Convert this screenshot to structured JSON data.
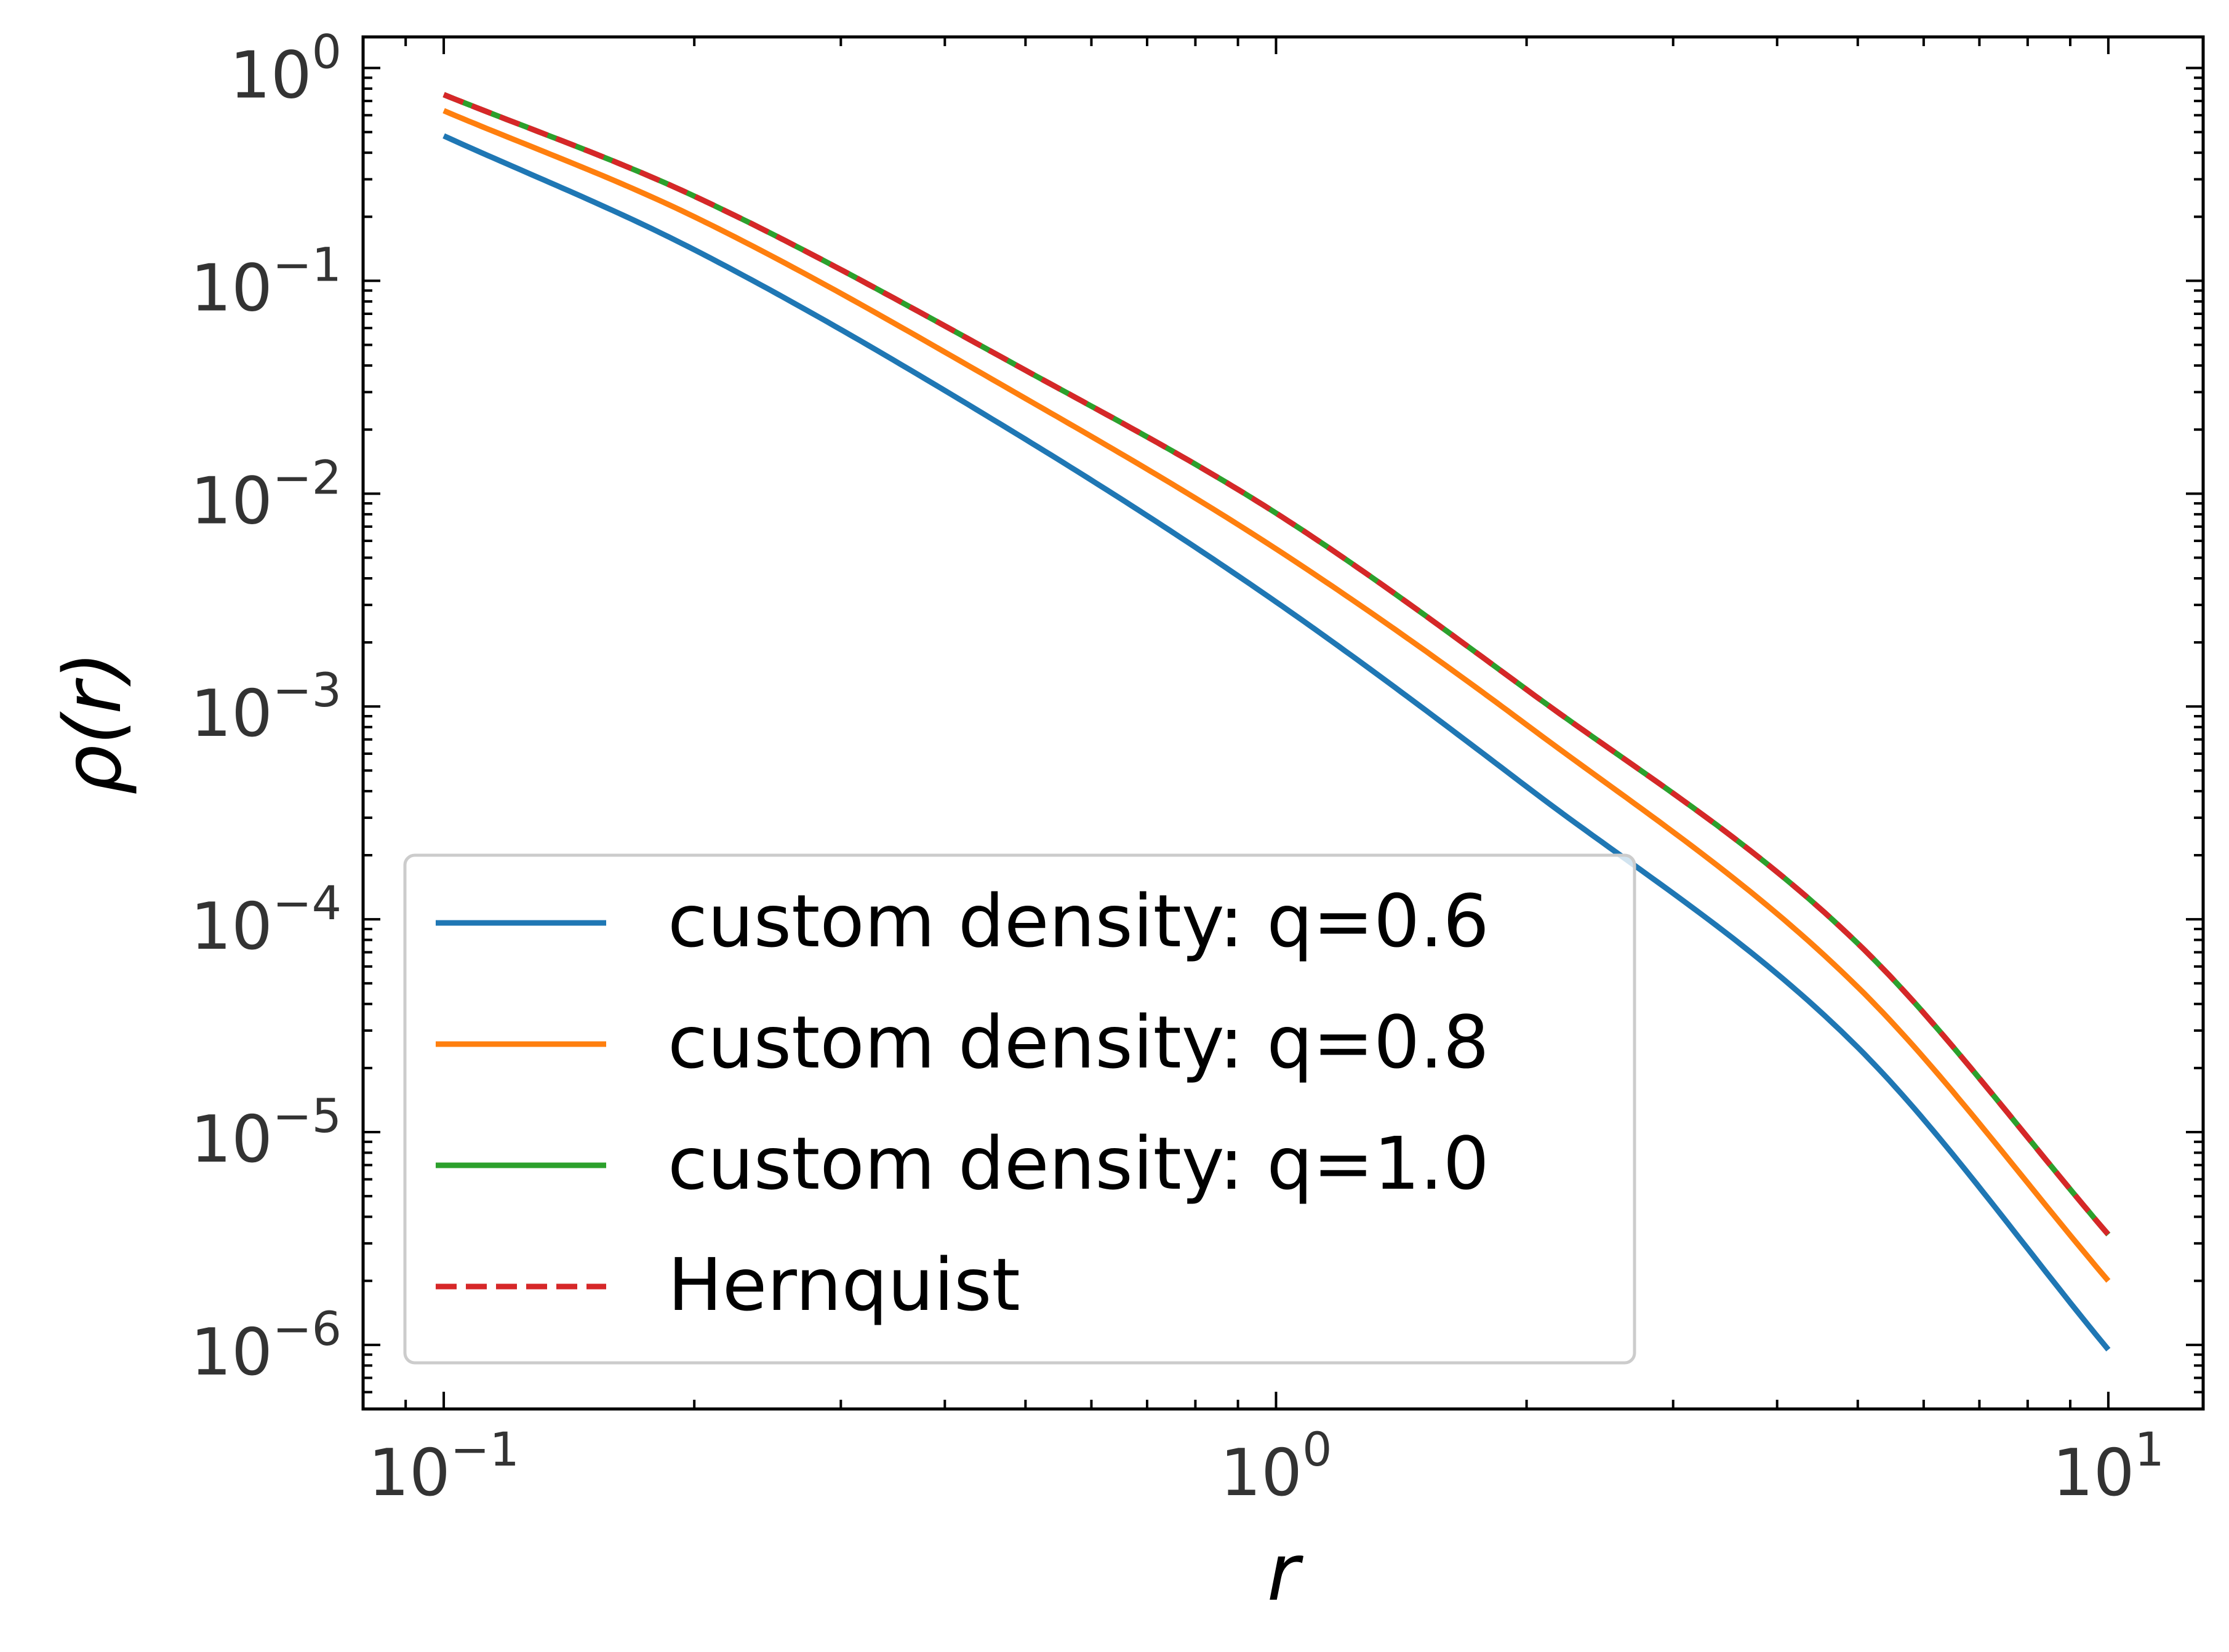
{
  "chart_data": {
    "type": "line",
    "title": "",
    "xlabel": "r",
    "ylabel": "ρ(r)",
    "xscale": "log",
    "yscale": "log",
    "xlim": [
      0.08,
      13
    ],
    "ylim": [
      5e-07,
      1.4
    ],
    "grid": false,
    "legend_position": "lower-left",
    "x_ticks": [
      {
        "value": 0.1,
        "base": "10",
        "exp": "−1"
      },
      {
        "value": 1,
        "base": "10",
        "exp": "0"
      },
      {
        "value": 10,
        "base": "10",
        "exp": "1"
      }
    ],
    "y_ticks": [
      {
        "value": 1,
        "base": "10",
        "exp": "0"
      },
      {
        "value": 0.1,
        "base": "10",
        "exp": "−1"
      },
      {
        "value": 0.01,
        "base": "10",
        "exp": "−2"
      },
      {
        "value": 0.001,
        "base": "10",
        "exp": "−3"
      },
      {
        "value": 0.0001,
        "base": "10",
        "exp": "−4"
      },
      {
        "value": 1e-05,
        "base": "10",
        "exp": "−5"
      },
      {
        "value": 1e-06,
        "base": "10",
        "exp": "−6"
      }
    ],
    "x": [
      0.1,
      0.2,
      0.5,
      1.0,
      2.0,
      5.0,
      10.0
    ],
    "series": [
      {
        "name": "custom density: q=0.6",
        "color": "#1f77b4",
        "dash": "solid",
        "values": [
          0.48,
          0.14,
          0.018,
          0.0031,
          0.00042,
          2.5e-05,
          9.5e-07
        ]
      },
      {
        "name": "custom density: q=0.8",
        "color": "#ff7f0e",
        "dash": "solid",
        "values": [
          0.63,
          0.2,
          0.028,
          0.0055,
          0.00082,
          4.8e-05,
          2e-06
        ]
      },
      {
        "name": "custom density: q=1.0",
        "color": "#2ca02c",
        "dash": "solid",
        "values": [
          0.75,
          0.25,
          0.038,
          0.0081,
          0.0012,
          7.7e-05,
          3.3e-06
        ]
      },
      {
        "name": "Hernquist",
        "color": "#d62728",
        "dash": "dashed",
        "values": [
          0.75,
          0.25,
          0.038,
          0.0081,
          0.0012,
          7.7e-05,
          3.3e-06
        ]
      }
    ]
  }
}
